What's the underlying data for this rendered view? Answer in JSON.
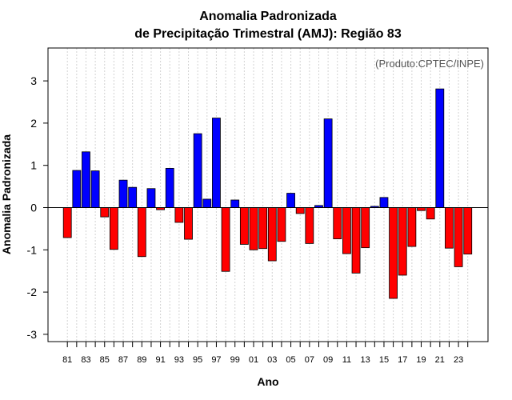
{
  "chart_data": {
    "type": "bar",
    "title_line1": "Anomalia Padronizada",
    "title_line2": "de Precipitação Trimestral (AMJ): Região 83",
    "xlabel": "Ano",
    "ylabel": "Anomalia Padronizada",
    "annotation": "(Produto:CPTEC/INPE)",
    "ylim": [
      -3.15,
      3.8
    ],
    "yticks": [
      -3,
      -2,
      -1,
      0,
      1,
      2,
      3
    ],
    "categories": [
      "81",
      "82",
      "83",
      "84",
      "85",
      "86",
      "87",
      "88",
      "89",
      "90",
      "91",
      "92",
      "93",
      "94",
      "95",
      "96",
      "97",
      "98",
      "99",
      "00",
      "01",
      "02",
      "03",
      "04",
      "05",
      "06",
      "07",
      "08",
      "09",
      "10",
      "11",
      "12",
      "13",
      "14",
      "15",
      "16",
      "17",
      "18",
      "19",
      "20",
      "21",
      "22",
      "23",
      "24"
    ],
    "tick_labels": [
      "81",
      "83",
      "85",
      "87",
      "89",
      "91",
      "93",
      "95",
      "97",
      "99",
      "01",
      "03",
      "05",
      "07",
      "09",
      "11",
      "13",
      "15",
      "17",
      "19",
      "21",
      "23"
    ],
    "values": [
      -0.71,
      0.88,
      1.32,
      0.87,
      -0.22,
      -0.99,
      0.65,
      0.48,
      -1.16,
      0.45,
      -0.05,
      0.93,
      -0.35,
      -0.75,
      1.75,
      0.2,
      2.12,
      -1.51,
      0.18,
      -0.87,
      -1.0,
      -0.97,
      -1.26,
      -0.8,
      0.34,
      -0.14,
      -0.85,
      0.05,
      2.1,
      -0.74,
      -1.09,
      -1.55,
      -0.95,
      0.03,
      0.24,
      -2.15,
      -1.6,
      -0.92,
      -0.07,
      -0.27,
      2.81,
      -0.96,
      -1.4,
      -1.1
    ],
    "colors": {
      "positive": "#0000ff",
      "negative": "#ff0000",
      "outline": "#000000",
      "grid": "#d3d3d3",
      "zero_line": "#000000"
    }
  }
}
